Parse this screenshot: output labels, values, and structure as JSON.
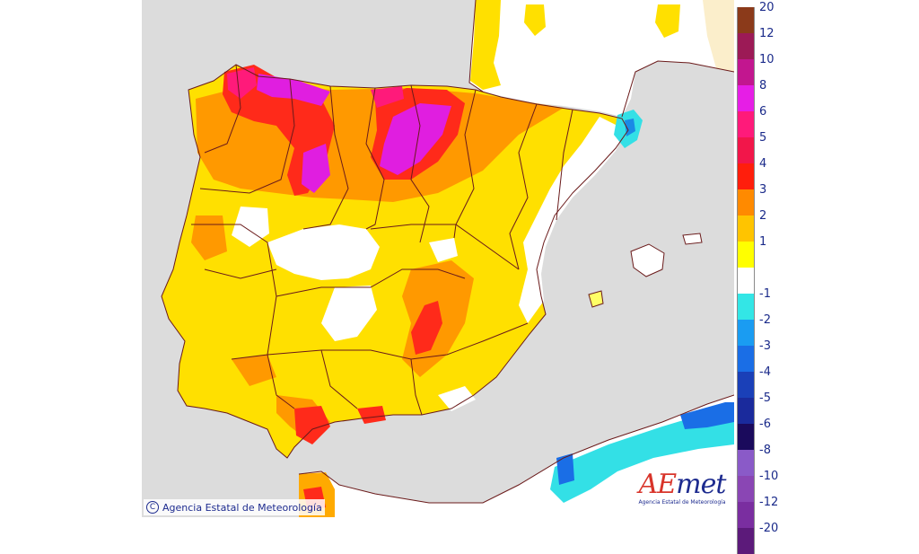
{
  "legend": {
    "items": [
      {
        "label": "20",
        "color": "#8b3a1a"
      },
      {
        "label": "12",
        "color": "#9c1a56"
      },
      {
        "label": "10",
        "color": "#c2168f"
      },
      {
        "label": "8",
        "color": "#e61ee6"
      },
      {
        "label": "6",
        "color": "#ff1a7a"
      },
      {
        "label": "5",
        "color": "#f2164a"
      },
      {
        "label": "4",
        "color": "#ff1e0c"
      },
      {
        "label": "3",
        "color": "#ff8a00"
      },
      {
        "label": "2",
        "color": "#ffc400"
      },
      {
        "label": "1",
        "color": "#ffff00"
      },
      {
        "label": "",
        "color": "#ffffff"
      },
      {
        "label": "-1",
        "color": "#33e6e6"
      },
      {
        "label": "-2",
        "color": "#1a9cf2"
      },
      {
        "label": "-3",
        "color": "#1a6ee6"
      },
      {
        "label": "-4",
        "color": "#1a40b8"
      },
      {
        "label": "-5",
        "color": "#1a2a9c"
      },
      {
        "label": "-6",
        "color": "#1a0a5c"
      },
      {
        "label": "-8",
        "color": "#8a5ac8"
      },
      {
        "label": "-10",
        "color": "#8a46b4"
      },
      {
        "label": "-12",
        "color": "#7a2ea0"
      },
      {
        "label": "-20",
        "color": "#5c1a7a"
      }
    ]
  },
  "credit": {
    "symbol": "C",
    "text": "Agencia Estatal de Meteorología"
  },
  "logo": {
    "ae": "AE",
    "met": "met",
    "subtitle": "Agencia Estatal de Meteorología"
  },
  "colors": {
    "sea": "#dcdcdc",
    "neutral": "#ffffff",
    "border": "#6a1a1a"
  }
}
